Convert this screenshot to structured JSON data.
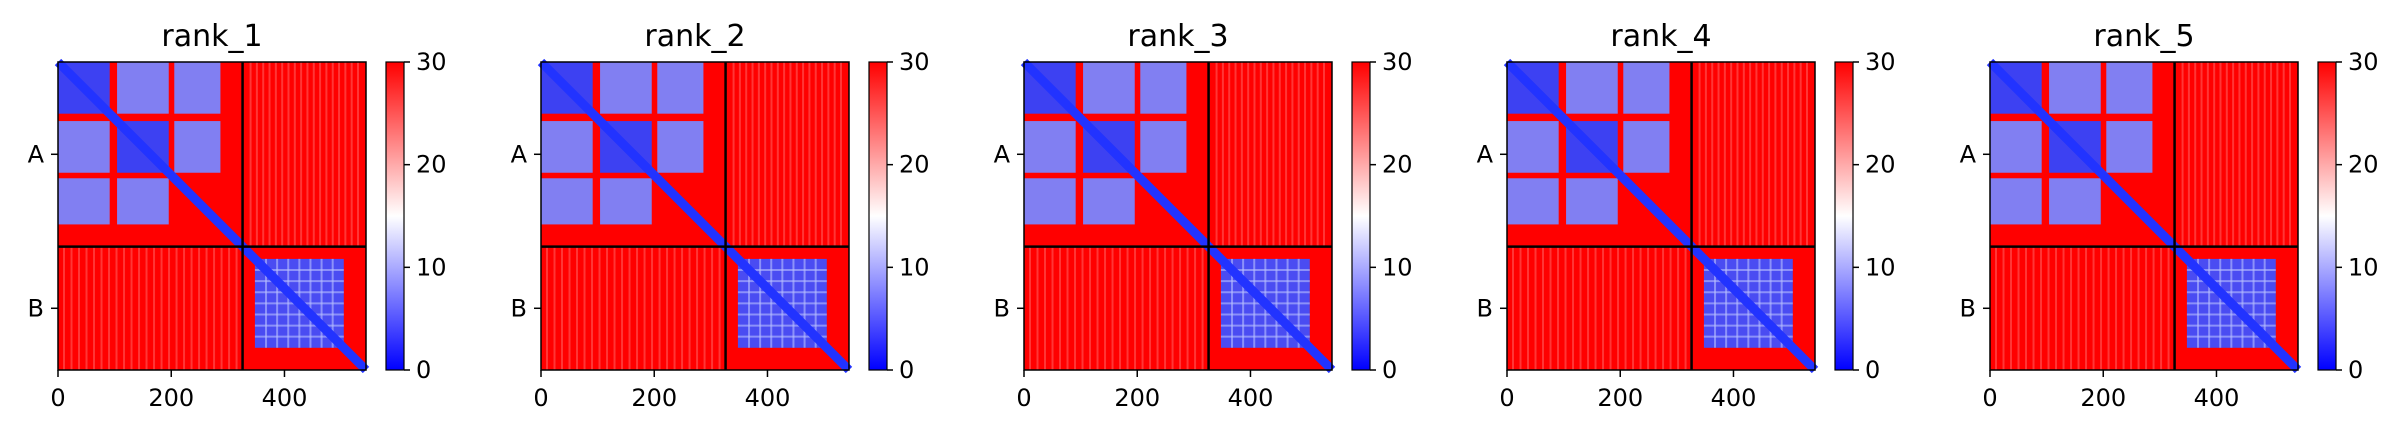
{
  "chart_data": [
    {
      "type": "heatmap",
      "title": "rank_1",
      "x_ticks": [
        0,
        200,
        400
      ],
      "y_ticks": [
        "A",
        "B"
      ],
      "chain_boundary": 326,
      "xlim": [
        0,
        544
      ],
      "colorbar": {
        "min": 0,
        "max": 30,
        "ticks": [
          0,
          10,
          20,
          30
        ],
        "colormap": "bwr"
      }
    },
    {
      "type": "heatmap",
      "title": "rank_2",
      "x_ticks": [
        0,
        200,
        400
      ],
      "y_ticks": [
        "A",
        "B"
      ],
      "chain_boundary": 326,
      "xlim": [
        0,
        544
      ],
      "colorbar": {
        "min": 0,
        "max": 30,
        "ticks": [
          0,
          10,
          20,
          30
        ],
        "colormap": "bwr"
      }
    },
    {
      "type": "heatmap",
      "title": "rank_3",
      "x_ticks": [
        0,
        200,
        400
      ],
      "y_ticks": [
        "A",
        "B"
      ],
      "chain_boundary": 326,
      "xlim": [
        0,
        544
      ],
      "colorbar": {
        "min": 0,
        "max": 30,
        "ticks": [
          0,
          10,
          20,
          30
        ],
        "colormap": "bwr"
      }
    },
    {
      "type": "heatmap",
      "title": "rank_4",
      "x_ticks": [
        0,
        200,
        400
      ],
      "y_ticks": [
        "A",
        "B"
      ],
      "chain_boundary": 326,
      "xlim": [
        0,
        544
      ],
      "colorbar": {
        "min": 0,
        "max": 30,
        "ticks": [
          0,
          10,
          20,
          30
        ],
        "colormap": "bwr"
      }
    },
    {
      "type": "heatmap",
      "title": "rank_5",
      "x_ticks": [
        0,
        200,
        400
      ],
      "y_ticks": [
        "A",
        "B"
      ],
      "chain_boundary": 326,
      "xlim": [
        0,
        544
      ],
      "colorbar": {
        "min": 0,
        "max": 30,
        "ticks": [
          0,
          10,
          20,
          30
        ],
        "colormap": "bwr"
      }
    }
  ],
  "colors": {
    "low": "#0000ff",
    "mid": "#ffffff",
    "high": "#ff0000"
  }
}
